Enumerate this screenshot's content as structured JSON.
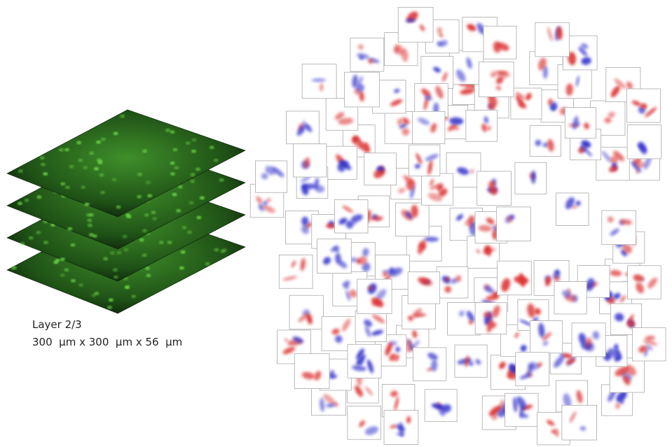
{
  "caption": {
    "layer": "Layer 2/3",
    "dimensions": "300  μm x 300  μm x 56  μm"
  }
}
